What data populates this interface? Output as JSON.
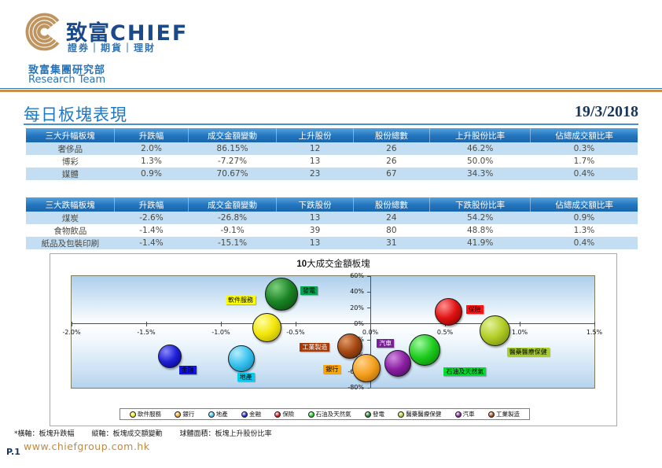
{
  "header": {
    "brand_cn": "致富",
    "brand_en": "CHIEF",
    "brand_sub": "證券｜期貨｜理財",
    "dept_cn": "致富集團研究部",
    "dept_en": "Research Team"
  },
  "page": {
    "title": "每日板塊表現",
    "date": "19/3/2018",
    "page_no": "P.1",
    "website": "www.chiefgroup.com.hk"
  },
  "colors": {
    "brand_gold": "#C0945E",
    "brand_navy": "#1B4A8A",
    "accent_blue": "#2E75B6",
    "title_blue": "#1E78C8",
    "table_header_blue": "#2274BE",
    "table_row_blue": "#C3DDF2",
    "date_navy": "#17365D",
    "website_gold": "#C18A3C"
  },
  "tables": {
    "gainers": {
      "headers": [
        "三大升幅板塊",
        "升跌幅",
        "成交金額變動",
        "上升股份",
        "股份總數",
        "上升股份比率",
        "佔總成交額比率"
      ],
      "rows": [
        [
          "奢侈品",
          "2.0%",
          "86.15%",
          "12",
          "26",
          "46.2%",
          "0.3%"
        ],
        [
          "博彩",
          "1.3%",
          "-7.27%",
          "13",
          "26",
          "50.0%",
          "1.7%"
        ],
        [
          "媒體",
          "0.9%",
          "70.67%",
          "23",
          "67",
          "34.3%",
          "0.4%"
        ]
      ]
    },
    "losers": {
      "headers": [
        "三大跌幅板塊",
        "升跌幅",
        "成交金額變動",
        "下跌股份",
        "股份總數",
        "下跌股份比率",
        "佔總成交額比率"
      ],
      "rows": [
        [
          "煤炭",
          "-2.6%",
          "-26.8%",
          "13",
          "24",
          "54.2%",
          "0.9%"
        ],
        [
          "食物飲品",
          "-1.4%",
          "-9.1%",
          "39",
          "80",
          "48.8%",
          "1.3%"
        ],
        [
          "紙品及包裝印刷",
          "-1.4%",
          "-15.1%",
          "13",
          "31",
          "41.9%",
          "0.4%"
        ]
      ]
    }
  },
  "chart_data": {
    "type": "scatter",
    "subtype": "bubble",
    "title_bold": "10",
    "title_rest": "大成交金額板塊",
    "xlabel": "板塊升跌幅",
    "ylabel": "板塊成交額變動",
    "bubble_size": "板塊上升股份比率",
    "xlim": [
      -2.0,
      1.5
    ],
    "ylim": [
      -80,
      60
    ],
    "x_ticks": [
      -2.0,
      -1.5,
      -1.0,
      -0.5,
      0.0,
      0.5,
      1.0,
      1.5
    ],
    "x_tick_labels": [
      "-2.0%",
      "-1.5%",
      "-1.0%",
      "-0.5%",
      "0.0%",
      "0.5%",
      "1.0%",
      "1.5%"
    ],
    "y_ticks": [
      60,
      40,
      20,
      0,
      -20,
      -40,
      -60,
      -80
    ],
    "y_tick_labels": [
      "60%",
      "40%",
      "20%",
      "0%",
      "-20%",
      "-40%",
      "-60%",
      "-80%"
    ],
    "grid": false,
    "legend_position": "bottom",
    "series": [
      {
        "name": "金融",
        "x": -1.35,
        "y": -40,
        "r": 14,
        "colors": [
          "#8A8AF8",
          "#2020D8",
          "#000078"
        ],
        "label": {
          "dx": 13,
          "dy": 13,
          "bg": "#1414E6",
          "fg": "#000000"
        }
      },
      {
        "name": "地產",
        "x": -0.87,
        "y": -43,
        "r": 16,
        "colors": [
          "#B8ECFA",
          "#38C3EE",
          "#0878A8"
        ],
        "label": {
          "dx": -4,
          "dy": 19,
          "bg": "#00CCF0",
          "fg": "#000000"
        }
      },
      {
        "name": "軟件服務",
        "x": -0.7,
        "y": -4,
        "r": 17.5,
        "colors": [
          "#FFFFA0",
          "#F2E60A",
          "#A89E00"
        ],
        "label": {
          "dx": -51,
          "dy": -40,
          "bg": "#FFFF00",
          "fg": "#000000"
        }
      },
      {
        "name": "發電",
        "x": -0.6,
        "y": 38,
        "r": 20,
        "colors": [
          "#7CCE7C",
          "#1A8424",
          "#063E0C"
        ],
        "label": {
          "dx": 25,
          "dy": -9,
          "bg": "#00A550",
          "fg": "#000000"
        }
      },
      {
        "name": "保險",
        "x": 0.52,
        "y": 16,
        "r": 16.5,
        "colors": [
          "#FF9090",
          "#E01212",
          "#780000"
        ],
        "label": {
          "dx": 23,
          "dy": -8,
          "bg": "#FF1111",
          "fg": "#000000"
        }
      },
      {
        "name": "醫藥醫療保健",
        "x": 0.83,
        "y": -8,
        "r": 18.5,
        "colors": [
          "#E2F29A",
          "#B2CC26",
          "#66800A"
        ],
        "label": {
          "dx": 16,
          "dy": 22,
          "bg": "#A7CE2A",
          "fg": "#000000"
        }
      },
      {
        "name": "工業製造",
        "x": -0.14,
        "y": -27,
        "r": 15,
        "colors": [
          "#E09A6A",
          "#A64812",
          "#521F02"
        ],
        "label": {
          "dx": -63,
          "dy": -3,
          "bg": "#A33C0A",
          "fg": "#FFFFFF"
        }
      },
      {
        "name": "銀行",
        "x": -0.03,
        "y": -54,
        "r": 17,
        "colors": [
          "#FFD28A",
          "#F5A01E",
          "#9C5E00"
        ],
        "label": {
          "dx": -54,
          "dy": -3,
          "bg": "#FFA500",
          "fg": "#000000"
        }
      },
      {
        "name": "汽車",
        "x": 0.18,
        "y": -48,
        "r": 16,
        "colors": [
          "#D08AE0",
          "#8A1FA2",
          "#3E0A50"
        ],
        "label": {
          "dx": -26,
          "dy": -30,
          "bg": "#7A1E96",
          "fg": "#FFFFFF"
        }
      },
      {
        "name": "石油及天然氣",
        "x": 0.36,
        "y": -32,
        "r": 19,
        "colors": [
          "#A0F8A0",
          "#1ECC1E",
          "#067806"
        ],
        "label": {
          "dx": 25,
          "dy": 23,
          "bg": "#00DD33",
          "fg": "#000000"
        }
      }
    ],
    "legend_order": [
      "軟件服務",
      "銀行",
      "地產",
      "金融",
      "保險",
      "石油及天然氣",
      "發電",
      "醫藥醫療保健",
      "汽車",
      "工業製造"
    ],
    "footnotes": [
      "*橫軸：板塊升跌幅",
      "縱軸：板塊成交額變動",
      "球體面積：板塊上升股份比率"
    ]
  }
}
